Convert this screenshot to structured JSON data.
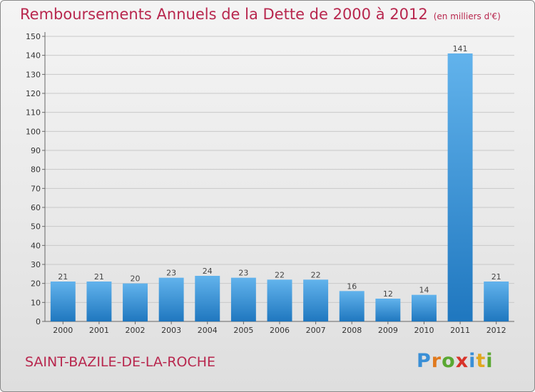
{
  "title": "Remboursements Annuels de la Dette de 2000 à 2012",
  "subtitle": "(en milliers d'€)",
  "commune": "SAINT-BAZILE-DE-LA-ROCHE",
  "brand": "Proxiti",
  "colors": {
    "title": "#b8274e",
    "bar_light": "#62b3ec",
    "bar_dark": "#1f77bf",
    "grid": "#c8c8c8"
  },
  "chart_data": {
    "type": "bar",
    "title": "Remboursements Annuels de la Dette de 2000 à 2012",
    "subtitle": "(en milliers d'€)",
    "categories": [
      "2000",
      "2001",
      "2002",
      "2003",
      "2004",
      "2005",
      "2006",
      "2007",
      "2008",
      "2009",
      "2010",
      "2011",
      "2012"
    ],
    "values": [
      21,
      21,
      20,
      23,
      24,
      23,
      22,
      22,
      16,
      12,
      14,
      141,
      21
    ],
    "ylim": [
      0,
      150
    ],
    "yticks": [
      0,
      10,
      20,
      30,
      40,
      50,
      60,
      70,
      80,
      90,
      100,
      110,
      120,
      130,
      140,
      150
    ],
    "grid": true,
    "xlabel": "",
    "ylabel": ""
  }
}
